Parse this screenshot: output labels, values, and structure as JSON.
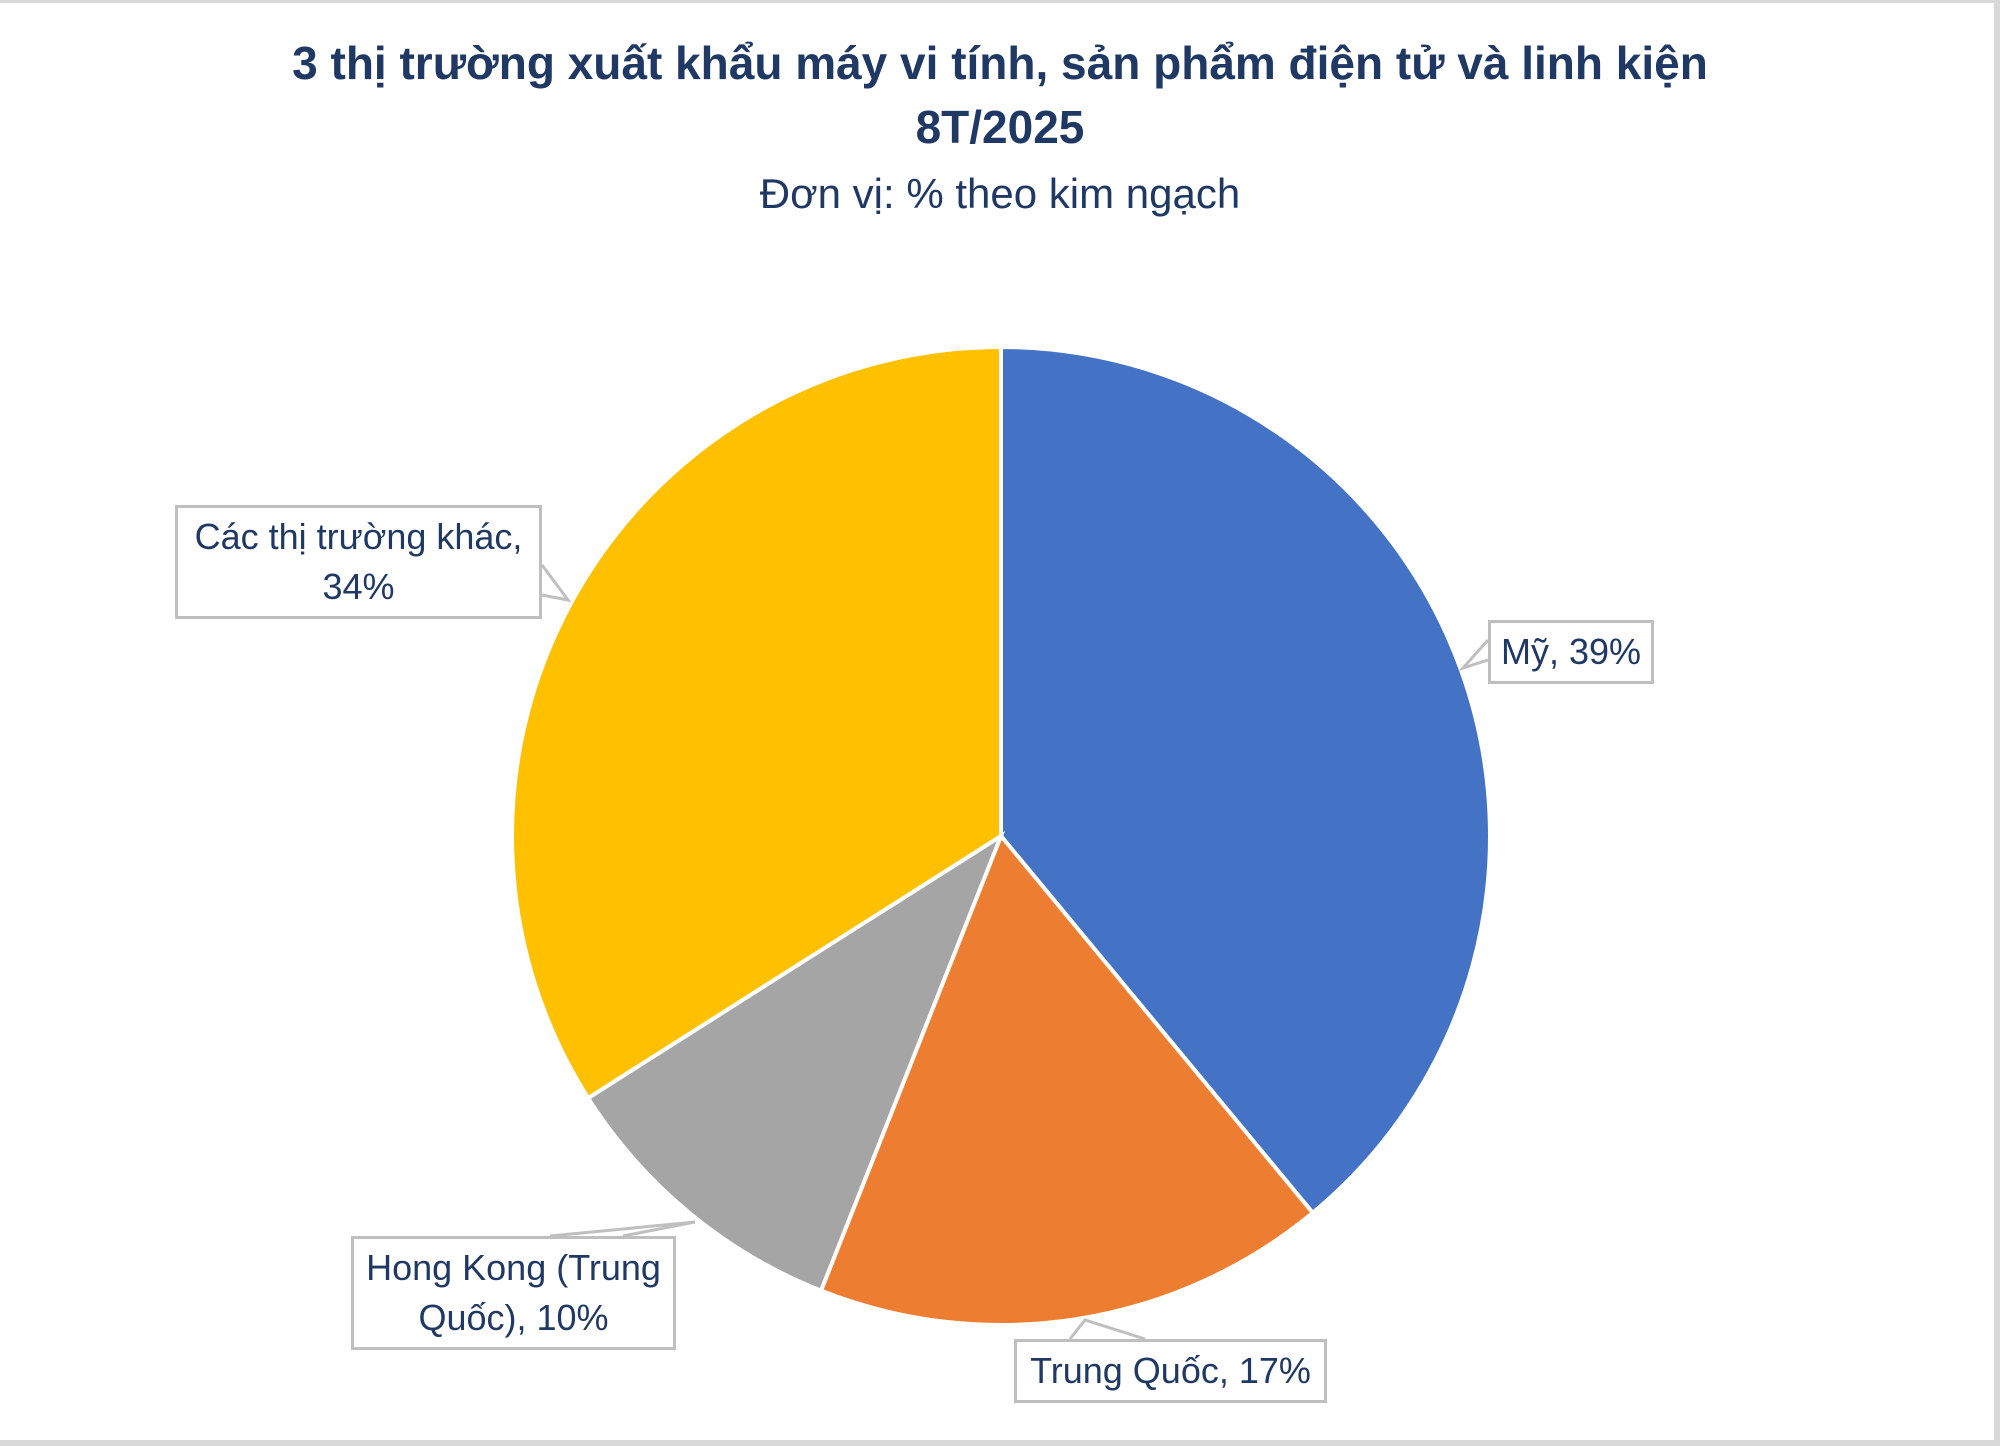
{
  "chart_data": {
    "type": "pie",
    "title": "3 thị trường xuất khẩu máy vi tính, sản phẩm điện tử và linh kiện 8T/2025",
    "subtitle": "Đơn vị: % theo kim ngạch",
    "categories": [
      "Mỹ",
      "Trung Quốc",
      "Hong Kong (Trung Quốc)",
      "Các thị trường khác"
    ],
    "values": [
      39,
      17,
      10,
      34
    ],
    "unit": "%",
    "colors": [
      "#4472C4",
      "#ED7D31",
      "#A5A5A5",
      "#FFC000"
    ],
    "start_angle": "12 o'clock, clockwise",
    "legend": "none (data labels with callouts)"
  },
  "header": {
    "title_line1": "3 thị trường xuất khẩu máy vi tính, sản phẩm điện tử và linh kiện",
    "title_line2": "8T/2025",
    "subtitle": "Đơn vị: % theo kim ngạch"
  },
  "labels": {
    "my": "Mỹ, 39%",
    "trung_quoc": "Trung Quốc, 17%",
    "hong_kong_line1": "Hong Kong (Trung",
    "hong_kong_line2": "Quốc), 10%",
    "khac_line1": "Các thị trường khác,",
    "khac_line2": "34%"
  }
}
